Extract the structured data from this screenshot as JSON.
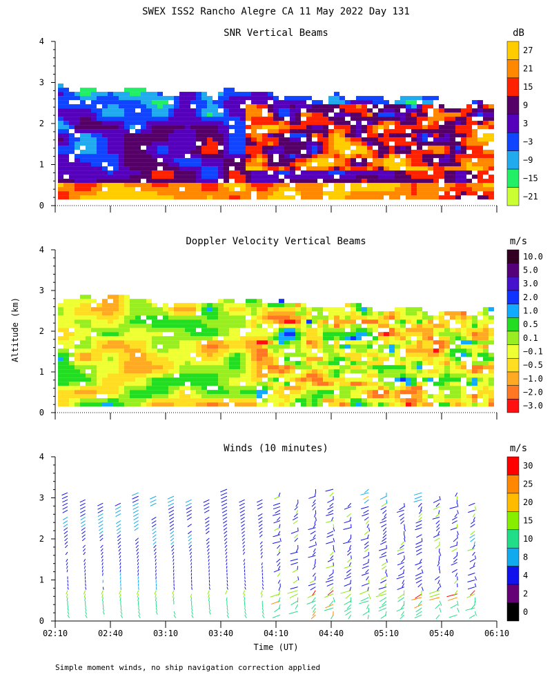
{
  "figure": {
    "title": "SWEX ISS2 Rancho Alegre CA  11 May 2022 Day 131",
    "footnote": "Simple moment winds, no ship navigation correction applied",
    "ylabel": "Altitude (km)",
    "xlabel": "Time (UT)"
  },
  "chart_data": [
    {
      "type": "heatmap",
      "title": "SNR Vertical Beams",
      "colorbar_unit": "dB",
      "colorbar_labels": [
        "27",
        "21",
        "15",
        "9",
        "3",
        "−3",
        "−9",
        "−15",
        "−21"
      ],
      "colors": [
        "#ffcc00",
        "#ff8800",
        "#ff2200",
        "#550066",
        "#5500bb",
        "#1144ff",
        "#22aaee",
        "#22ee66",
        "#ccff33"
      ],
      "levels": [
        27,
        21,
        15,
        9,
        3,
        -3,
        -9,
        -15,
        -21
      ],
      "xticks": [
        "02:10",
        "02:40",
        "03:10",
        "03:40",
        "04:10",
        "04:40",
        "05:10",
        "05:40",
        "06:10"
      ],
      "yticks": [
        "0",
        "1",
        "2",
        "3",
        "4"
      ],
      "ylim": [
        0,
        4
      ],
      "xrange": [
        "02:10",
        "06:10"
      ],
      "data_extent_km": [
        0.15,
        2.85
      ]
    },
    {
      "type": "heatmap",
      "title": "Doppler Velocity Vertical Beams",
      "colorbar_unit": "m/s",
      "colorbar_labels": [
        "10.0",
        "5.0",
        "3.0",
        "2.0",
        "1.0",
        "0.5",
        "0.1",
        "−0.1",
        "−0.5",
        "−1.0",
        "−2.0",
        "−3.0"
      ],
      "colors": [
        "#330022",
        "#55007a",
        "#4411cc",
        "#1133ff",
        "#11aaff",
        "#22dd22",
        "#99ee22",
        "#eeff33",
        "#ffdd22",
        "#ffaa22",
        "#ff7722",
        "#ff1111"
      ],
      "levels": [
        10,
        5,
        3,
        2,
        1,
        0.5,
        0.1,
        -0.1,
        -0.5,
        -1,
        -2,
        -3
      ],
      "xticks": [
        "02:10",
        "02:40",
        "03:10",
        "03:40",
        "04:10",
        "04:40",
        "05:10",
        "05:40",
        "06:10"
      ],
      "yticks": [
        "0",
        "1",
        "2",
        "3",
        "4"
      ],
      "ylim": [
        0,
        4
      ],
      "xrange": [
        "02:10",
        "06:10"
      ],
      "data_extent_km": [
        0.15,
        2.85
      ]
    },
    {
      "type": "wind-barbs",
      "title": "Winds (10 minutes)",
      "colorbar_unit": "m/s",
      "colorbar_labels": [
        "30",
        "25",
        "20",
        "15",
        "10",
        "8",
        "4",
        "2",
        "0"
      ],
      "colors": [
        "#ff0000",
        "#ff8800",
        "#ffbb00",
        "#88ee00",
        "#22dd88",
        "#11aaee",
        "#1111ee",
        "#660077",
        "#000000"
      ],
      "levels": [
        30,
        25,
        20,
        15,
        10,
        8,
        4,
        2,
        0
      ],
      "xticks": [
        "02:10",
        "02:40",
        "03:10",
        "03:40",
        "04:10",
        "04:40",
        "05:10",
        "05:40",
        "06:10"
      ],
      "yticks": [
        "0",
        "1",
        "2",
        "3",
        "4"
      ],
      "ylim": [
        0,
        4
      ],
      "xrange": [
        "02:10",
        "06:10"
      ],
      "profile_interval_min": 10,
      "profile_count": 24
    }
  ]
}
